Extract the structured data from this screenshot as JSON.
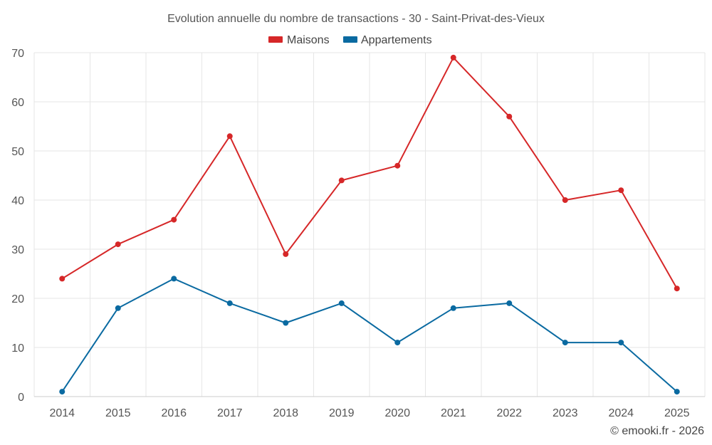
{
  "chart_data": {
    "type": "line",
    "title": "Evolution annuelle du nombre de transactions - 30 - Saint-Privat-des-Vieux",
    "categories": [
      "2014",
      "2015",
      "2016",
      "2017",
      "2018",
      "2019",
      "2020",
      "2021",
      "2022",
      "2023",
      "2024",
      "2025"
    ],
    "series": [
      {
        "name": "Maisons",
        "color": "#d62728",
        "values": [
          24,
          31,
          36,
          53,
          29,
          44,
          47,
          69,
          57,
          40,
          42,
          22
        ]
      },
      {
        "name": "Appartements",
        "color": "#0a6aa1",
        "values": [
          1,
          18,
          24,
          19,
          15,
          19,
          11,
          18,
          19,
          11,
          11,
          1
        ]
      }
    ],
    "ylim": [
      0,
      70
    ],
    "yticks": [
      0,
      10,
      20,
      30,
      40,
      50,
      60,
      70
    ],
    "grid": true,
    "legend": "top-center",
    "xlabel": "",
    "ylabel": ""
  },
  "credit": "© emooki.fr - 2026"
}
